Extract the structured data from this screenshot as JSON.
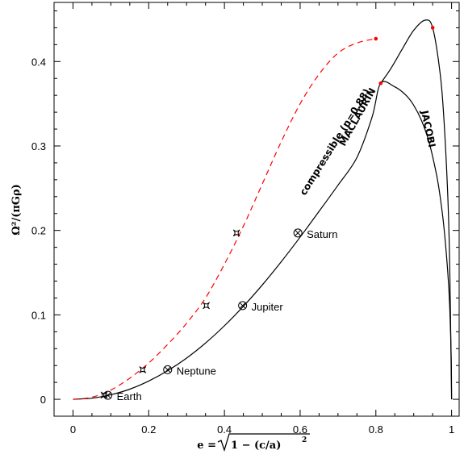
{
  "chart_data": {
    "type": "line",
    "xlabel_parts": {
      "lhs": "e = ",
      "radicand": "1 − (c/a)",
      "exponent": "2"
    },
    "ylabel": "Ω²/(πGρ)",
    "xlim": [
      -0.05,
      1.02
    ],
    "ylim": [
      -0.02,
      0.47
    ],
    "xticks": [
      0,
      0.2,
      0.4,
      0.6,
      0.8,
      1
    ],
    "xtick_labels": [
      "0",
      "0.2",
      "0.4",
      "0.6",
      "0.8",
      "1"
    ],
    "yticks": [
      0,
      0.1,
      0.2,
      0.3,
      0.4
    ],
    "ytick_labels": [
      "0",
      "0.1",
      "0.2",
      "0.3",
      "0.4"
    ],
    "grid": false,
    "series": [
      {
        "name": "MACLAURIN",
        "style": "solid",
        "color": "#000000",
        "points": [
          [
            0,
            0
          ],
          [
            0.05,
            0.0013
          ],
          [
            0.1,
            0.0054
          ],
          [
            0.15,
            0.012
          ],
          [
            0.2,
            0.0216
          ],
          [
            0.25,
            0.0338
          ],
          [
            0.3,
            0.0488
          ],
          [
            0.35,
            0.0666
          ],
          [
            0.4,
            0.0871
          ],
          [
            0.45,
            0.1101
          ],
          [
            0.5,
            0.1354
          ],
          [
            0.55,
            0.1629
          ],
          [
            0.6,
            0.1921
          ],
          [
            0.65,
            0.2226
          ],
          [
            0.7,
            0.2536
          ],
          [
            0.75,
            0.2864
          ],
          [
            0.79,
            0.3342
          ],
          [
            0.8127,
            0.3742
          ],
          [
            0.85,
            0.37
          ],
          [
            0.88,
            0.3599
          ],
          [
            0.9,
            0.3482
          ],
          [
            0.92,
            0.3308
          ],
          [
            0.94,
            0.3053
          ],
          [
            0.96,
            0.2666
          ],
          [
            0.97,
            0.2393
          ],
          [
            0.98,
            0.2028
          ],
          [
            0.99,
            0.1499
          ],
          [
            0.995,
            0.1105
          ],
          [
            0.999,
            0.05
          ],
          [
            1.0,
            0
          ]
        ]
      },
      {
        "name": "JACOBI",
        "style": "solid",
        "color": "#000000",
        "points": [
          [
            0.8127,
            0.3742
          ],
          [
            0.84,
            0.392
          ],
          [
            0.87,
            0.415
          ],
          [
            0.9,
            0.437
          ],
          [
            0.93,
            0.449
          ],
          [
            0.95,
            0.44
          ],
          [
            0.97,
            0.385
          ],
          [
            0.98,
            0.33
          ],
          [
            0.99,
            0.24
          ],
          [
            0.995,
            0.16
          ],
          [
            1.0,
            0
          ]
        ]
      },
      {
        "name": "compressible (n=0.88)",
        "style": "dashed",
        "color": "#ff0000",
        "points": [
          [
            0,
            0
          ],
          [
            0.05,
            0.0025
          ],
          [
            0.1,
            0.011
          ],
          [
            0.15,
            0.025
          ],
          [
            0.2,
            0.043
          ],
          [
            0.25,
            0.065
          ],
          [
            0.3,
            0.09
          ],
          [
            0.35,
            0.12
          ],
          [
            0.4,
            0.16
          ],
          [
            0.45,
            0.205
          ],
          [
            0.5,
            0.255
          ],
          [
            0.55,
            0.305
          ],
          [
            0.6,
            0.35
          ],
          [
            0.65,
            0.385
          ],
          [
            0.7,
            0.41
          ],
          [
            0.75,
            0.422
          ],
          [
            0.8,
            0.427
          ]
        ]
      }
    ],
    "endpoints": [
      {
        "x": 0.8,
        "y": 0.427,
        "color": "#ff0000"
      },
      {
        "x": 0.95,
        "y": 0.44,
        "color": "#ff0000"
      },
      {
        "x": 0.8127,
        "y": 0.3742,
        "color": "#ff0000"
      }
    ],
    "planets": [
      {
        "name": "Earth",
        "x": 0.092,
        "y": 0.0047
      },
      {
        "name": "Neptune",
        "x": 0.25,
        "y": 0.035
      },
      {
        "name": "Jupiter",
        "x": 0.448,
        "y": 0.111
      },
      {
        "name": "Saturn",
        "x": 0.594,
        "y": 0.197
      }
    ],
    "star_markers": [
      {
        "x": 0.082,
        "y": 0.005
      },
      {
        "x": 0.184,
        "y": 0.035
      },
      {
        "x": 0.352,
        "y": 0.111
      },
      {
        "x": 0.432,
        "y": 0.197
      }
    ]
  }
}
